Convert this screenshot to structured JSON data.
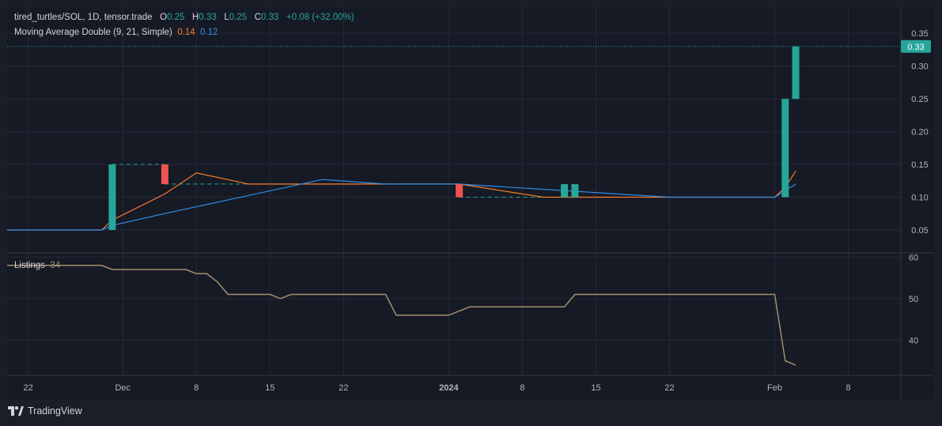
{
  "header": {
    "symbol": "tired_turtles/SOL, 1D, tensor.trade",
    "o_label": "O",
    "o_value": "0.25",
    "h_label": "H",
    "h_value": "0.33",
    "l_label": "L",
    "l_value": "0.25",
    "c_label": "C",
    "c_value": "0.33",
    "change": "+0.08 (+32.00%)"
  },
  "indicator": {
    "label": "Moving Average Double (9, 21, Simple)",
    "fast_value": "0.14",
    "slow_value": "0.12",
    "fast_color": "#f57c2b",
    "slow_color": "#2f8de4"
  },
  "listings": {
    "label": "Listings",
    "value": "34",
    "color": "#a38f6f"
  },
  "last_price_label": "0.33",
  "footer": {
    "brand": "TradingView"
  },
  "colors": {
    "up": "#26a69a",
    "down": "#ef5350",
    "background": "#161a25",
    "grid": "#242936",
    "text": "#d1d4dc"
  },
  "chart_data": {
    "type": "candlestick",
    "x_axis": {
      "ticks": [
        {
          "date": "2023-11-22",
          "label": "22"
        },
        {
          "date": "2023-12-01",
          "label": "Dec"
        },
        {
          "date": "2023-12-08",
          "label": "8"
        },
        {
          "date": "2023-12-15",
          "label": "15"
        },
        {
          "date": "2023-12-22",
          "label": "22"
        },
        {
          "date": "2024-01-01",
          "label": "2024",
          "bold": true
        },
        {
          "date": "2024-01-08",
          "label": "8"
        },
        {
          "date": "2024-01-15",
          "label": "15"
        },
        {
          "date": "2024-01-22",
          "label": "22"
        },
        {
          "date": "2024-02-01",
          "label": "Feb"
        },
        {
          "date": "2024-02-08",
          "label": "8"
        }
      ],
      "range": [
        "2023-11-20",
        "2024-02-13"
      ]
    },
    "price_axis": {
      "ylim": [
        0.015,
        0.39
      ],
      "ticks": [
        "0.05",
        "0.10",
        "0.15",
        "0.20",
        "0.25",
        "0.30",
        "0.35"
      ]
    },
    "candles": [
      {
        "date": "2023-11-30",
        "open": 0.05,
        "high": 0.15,
        "low": 0.05,
        "close": 0.15
      },
      {
        "date": "2023-12-05",
        "open": 0.15,
        "high": 0.15,
        "low": 0.12,
        "close": 0.12
      },
      {
        "date": "2024-01-02",
        "open": 0.12,
        "high": 0.12,
        "low": 0.1,
        "close": 0.1
      },
      {
        "date": "2024-01-12",
        "open": 0.1,
        "high": 0.12,
        "low": 0.1,
        "close": 0.12
      },
      {
        "date": "2024-01-13",
        "open": 0.1,
        "high": 0.12,
        "low": 0.1,
        "close": 0.12
      },
      {
        "date": "2024-02-02",
        "open": 0.1,
        "high": 0.25,
        "low": 0.1,
        "close": 0.25
      },
      {
        "date": "2024-02-03",
        "open": 0.25,
        "high": 0.33,
        "low": 0.25,
        "close": 0.33
      }
    ],
    "gap_lines": [
      {
        "from": "2023-11-30",
        "to": "2023-12-05",
        "value": 0.15
      },
      {
        "from": "2023-12-05",
        "to": "2024-01-02",
        "value": 0.12
      },
      {
        "from": "2024-01-02",
        "to": "2024-01-12",
        "value": 0.1
      }
    ],
    "series": [
      {
        "name": "MA fast",
        "points": [
          [
            "2023-11-20",
            0.05
          ],
          [
            "2023-11-29",
            0.05
          ],
          [
            "2023-11-30",
            0.065
          ],
          [
            "2023-12-05",
            0.105
          ],
          [
            "2023-12-08",
            0.137
          ],
          [
            "2023-12-13",
            0.12
          ],
          [
            "2024-01-02",
            0.12
          ],
          [
            "2024-01-10",
            0.1
          ],
          [
            "2024-02-01",
            0.1
          ],
          [
            "2024-02-02",
            0.115
          ],
          [
            "2024-02-03",
            0.14
          ]
        ]
      },
      {
        "name": "MA slow",
        "points": [
          [
            "2023-11-20",
            0.05
          ],
          [
            "2023-11-29",
            0.05
          ],
          [
            "2023-11-30",
            0.057
          ],
          [
            "2023-12-05",
            0.075
          ],
          [
            "2023-12-20",
            0.127
          ],
          [
            "2023-12-26",
            0.12
          ],
          [
            "2024-01-02",
            0.12
          ],
          [
            "2024-01-22",
            0.1
          ],
          [
            "2024-02-01",
            0.1
          ],
          [
            "2024-02-03",
            0.12
          ]
        ]
      }
    ],
    "listings_axis": {
      "ylim": [
        31.5,
        61
      ],
      "ticks": [
        "40",
        "50",
        "60"
      ]
    },
    "listings_series": [
      [
        "2023-11-20",
        58
      ],
      [
        "2023-11-29",
        58
      ],
      [
        "2023-11-30",
        57
      ],
      [
        "2023-12-07",
        57
      ],
      [
        "2023-12-08",
        56
      ],
      [
        "2023-12-09",
        56
      ],
      [
        "2023-12-10",
        54
      ],
      [
        "2023-12-11",
        51
      ],
      [
        "2023-12-15",
        51
      ],
      [
        "2023-12-16",
        50
      ],
      [
        "2023-12-17",
        51
      ],
      [
        "2023-12-26",
        51
      ],
      [
        "2023-12-27",
        46
      ],
      [
        "2024-01-01",
        46
      ],
      [
        "2024-01-03",
        48
      ],
      [
        "2024-01-12",
        48
      ],
      [
        "2024-01-13",
        51
      ],
      [
        "2024-02-01",
        51
      ],
      [
        "2024-02-02",
        35
      ],
      [
        "2024-02-03",
        34
      ]
    ]
  }
}
